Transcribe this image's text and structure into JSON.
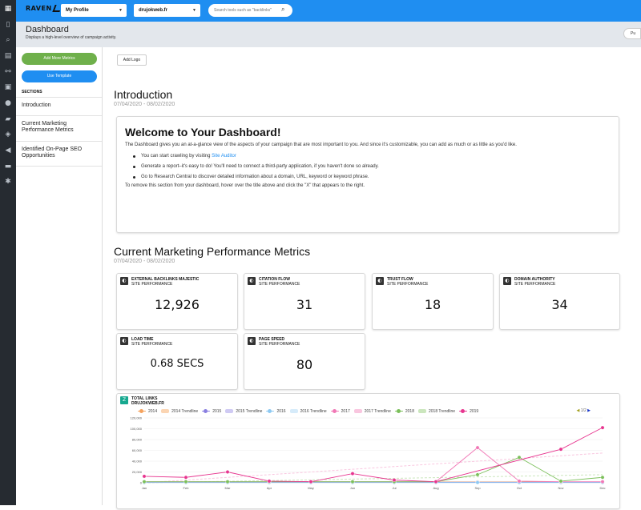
{
  "topbar": {
    "logo": "RAVEN",
    "profile_select": "My Profile",
    "domain_select": "drujokweb.fr",
    "search_placeholder": "Search tools such as \"backlinks\""
  },
  "header": {
    "title": "Dashboard",
    "subtitle": "Displays a high-level overview of campaign activity.",
    "right_button": "Pu"
  },
  "sidebar": {
    "add_metrics": "Add More Metrics",
    "use_template": "Use Template",
    "sections_title": "SECTIONS",
    "items": [
      "Introduction",
      "Current Marketing Performance Metrics",
      "Identified On-Page SEO Opportunities"
    ]
  },
  "main": {
    "add_logo": "Add Logo",
    "intro_title": "Introduction",
    "intro_dates": "07/04/2020 - 08/02/2020",
    "welcome": {
      "title": "Welcome to Your Dashboard!",
      "paragraph": "The Dashboard gives you an at-a-glance view of the aspects of your campaign that are most important to you. And since it's customizable, you can add as much or as little as you'd like.",
      "bullet1_prefix": "You can start crawling by visiting ",
      "bullet1_link": "Site Auditor",
      "bullet2": "Generate a report–it's easy to do! You'll need to connect a third-party application, if you haven't done so already.",
      "bullet3": "Go to Research Central to discover detailed information about a domain, URL, keyword or keyword phrase.",
      "footer": "To remove this section from your dashboard, hover over the title above and click the \"X\" that appears to the right."
    },
    "metrics_title": "Current Marketing Performance Metrics",
    "metrics_dates": "07/04/2020 - 08/02/2020",
    "metrics": [
      {
        "title": "EXTERNAL BACKLINKS MAJESTIC",
        "sub": "SITE PERFORMANCE",
        "value": "12,926"
      },
      {
        "title": "CITATION FLOW",
        "sub": "SITE PERFORMANCE",
        "value": "31"
      },
      {
        "title": "TRUST FLOW",
        "sub": "SITE PERFORMANCE",
        "value": "18"
      },
      {
        "title": "DOMAIN AUTHORITY",
        "sub": "SITE PERFORMANCE",
        "value": "34"
      },
      {
        "title": "LOAD TIME",
        "sub": "SITE PERFORMANCE",
        "value": "0.68 SECS"
      },
      {
        "title": "PAGE SPEED",
        "sub": "SITE PERFORMANCE",
        "value": "80"
      }
    ],
    "links_title": "TOTAL LINKS",
    "links_sub": "DRUJOKWEB.FR",
    "pager": "1/2"
  },
  "chart_data": {
    "type": "line",
    "title": "TOTAL LINKS",
    "categories": [
      "Jan",
      "Feb",
      "Mar",
      "Apr",
      "May",
      "Jun",
      "Jul",
      "Aug",
      "Sep",
      "Oct",
      "Nov",
      "Dec"
    ],
    "ylim": [
      0,
      120000
    ],
    "yticks": [
      "0",
      "20,000",
      "40,000",
      "60,000",
      "80,000",
      "100,000",
      "120,000"
    ],
    "legend": [
      {
        "name": "2014",
        "type": "dot",
        "color": "#f5a25d"
      },
      {
        "name": "2014 Trendline",
        "type": "swatch",
        "color": "#fbd5b3"
      },
      {
        "name": "2015",
        "type": "dot",
        "color": "#8a7fe0"
      },
      {
        "name": "2015 Trendline",
        "type": "swatch",
        "color": "#cfcaf3"
      },
      {
        "name": "2016",
        "type": "dot",
        "color": "#8ec9f2"
      },
      {
        "name": "2016 Trendline",
        "type": "swatch",
        "color": "#d6ebfa"
      },
      {
        "name": "2017",
        "type": "dot",
        "color": "#f178b6"
      },
      {
        "name": "2017 Trendline",
        "type": "swatch",
        "color": "#f9c6df"
      },
      {
        "name": "2018",
        "type": "dot",
        "color": "#7bbf5a"
      },
      {
        "name": "2018 Trendline",
        "type": "swatch",
        "color": "#cbe6bd"
      },
      {
        "name": "2019",
        "type": "dot",
        "color": "#e7358f"
      }
    ],
    "series": [
      {
        "name": "2014",
        "color": "#f5a25d",
        "values": [
          1500,
          1500,
          1500,
          1500,
          1500,
          1500,
          1500,
          1500,
          1500,
          1500,
          1500,
          1500
        ]
      },
      {
        "name": "2015",
        "color": "#8a7fe0",
        "values": [
          1000,
          1000,
          1000,
          1000,
          1000,
          1000,
          1000,
          1000,
          1000,
          1000,
          1000,
          1000
        ]
      },
      {
        "name": "2016",
        "color": "#8ec9f2",
        "values": [
          500,
          500,
          500,
          500,
          500,
          500,
          500,
          500,
          500,
          500,
          500,
          500
        ]
      },
      {
        "name": "2017",
        "color": "#f178b6",
        "values": [
          2000,
          2000,
          2000,
          2000,
          2000,
          2000,
          2000,
          2000,
          65000,
          3000,
          2000,
          2000
        ]
      },
      {
        "name": "2018",
        "color": "#7bbf5a",
        "values": [
          2000,
          2000,
          2000,
          2000,
          2000,
          2000,
          2000,
          2000,
          15000,
          47000,
          3000,
          10000
        ]
      },
      {
        "name": "2019",
        "color": "#e7358f",
        "values": [
          12000,
          10000,
          20000,
          3000,
          2000,
          17000,
          5000,
          2000,
          null,
          null,
          62000,
          102000
        ]
      }
    ],
    "trendlines": [
      {
        "name": "2017 Trendline",
        "color": "#f9c6df",
        "start": 0,
        "end": 55000
      },
      {
        "name": "2018 Trendline",
        "color": "#cbe6bd",
        "start": 0,
        "end": 15000
      }
    ]
  }
}
